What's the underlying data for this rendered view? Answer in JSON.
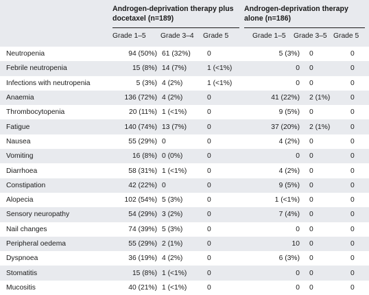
{
  "header": {
    "group1": "Androgen-deprivation therapy plus docetaxel (n=189)",
    "group2": "Androgen-deprivation therapy alone (n=186)",
    "cols": [
      "Grade 1–5",
      "Grade 3–4",
      "Grade 5",
      "Grade 1–5",
      "Grade 3–5",
      "Grade 5"
    ]
  },
  "rows": [
    [
      "Neutropenia",
      "94 (50%)",
      "61 (32%)",
      "0",
      "5 (3%)",
      "0",
      "0"
    ],
    [
      "Febrile neutropenia",
      "15 (8%)",
      "14 (7%)",
      "1 (<1%)",
      "0",
      "0",
      "0"
    ],
    [
      "Infections with neutropenia",
      "5 (3%)",
      "4 (2%)",
      "1 (<1%)",
      "0",
      "0",
      "0"
    ],
    [
      "Anaemia",
      "136 (72%)",
      "4 (2%)",
      "0",
      "41 (22%)",
      "2 (1%)",
      "0"
    ],
    [
      "Thrombocytopenia",
      "20 (11%)",
      "1 (<1%)",
      "0",
      "9 (5%)",
      "0",
      "0"
    ],
    [
      "Fatigue",
      "140 (74%)",
      "13 (7%)",
      "0",
      "37 (20%)",
      "2 (1%)",
      "0"
    ],
    [
      "Nausea",
      "55 (29%)",
      "0",
      "0",
      "4 (2%)",
      "0",
      "0"
    ],
    [
      "Vomiting",
      "16 (8%)",
      "0 (0%)",
      "0",
      "0",
      "0",
      "0"
    ],
    [
      "Diarrhoea",
      "58 (31%)",
      "1 (<1%)",
      "0",
      "4 (2%)",
      "0",
      "0"
    ],
    [
      "Constipation",
      "42 (22%)",
      "0",
      "0",
      "9 (5%)",
      "0",
      "0"
    ],
    [
      "Alopecia",
      "102 (54%)",
      "5 (3%)",
      "0",
      "1 (<1%)",
      "0",
      "0"
    ],
    [
      "Sensory neuropathy",
      "54 (29%)",
      "3 (2%)",
      "0",
      "7 (4%)",
      "0",
      "0"
    ],
    [
      "Nail changes",
      "74 (39%)",
      "5 (3%)",
      "0",
      "0",
      "0",
      "0"
    ],
    [
      "Peripheral oedema",
      "55 (29%)",
      "2 (1%)",
      "0",
      "10",
      "0",
      "0"
    ],
    [
      "Dyspnoea",
      "36 (19%)",
      "4 (2%)",
      "0",
      "6 (3%)",
      "0",
      "0"
    ],
    [
      "Stomatitis",
      "15 (8%)",
      "1 (<1%)",
      "0",
      "0",
      "0",
      "0"
    ],
    [
      "Mucositis",
      "40 (21%)",
      "1 (<1%)",
      "0",
      "0",
      "0",
      "0"
    ]
  ]
}
